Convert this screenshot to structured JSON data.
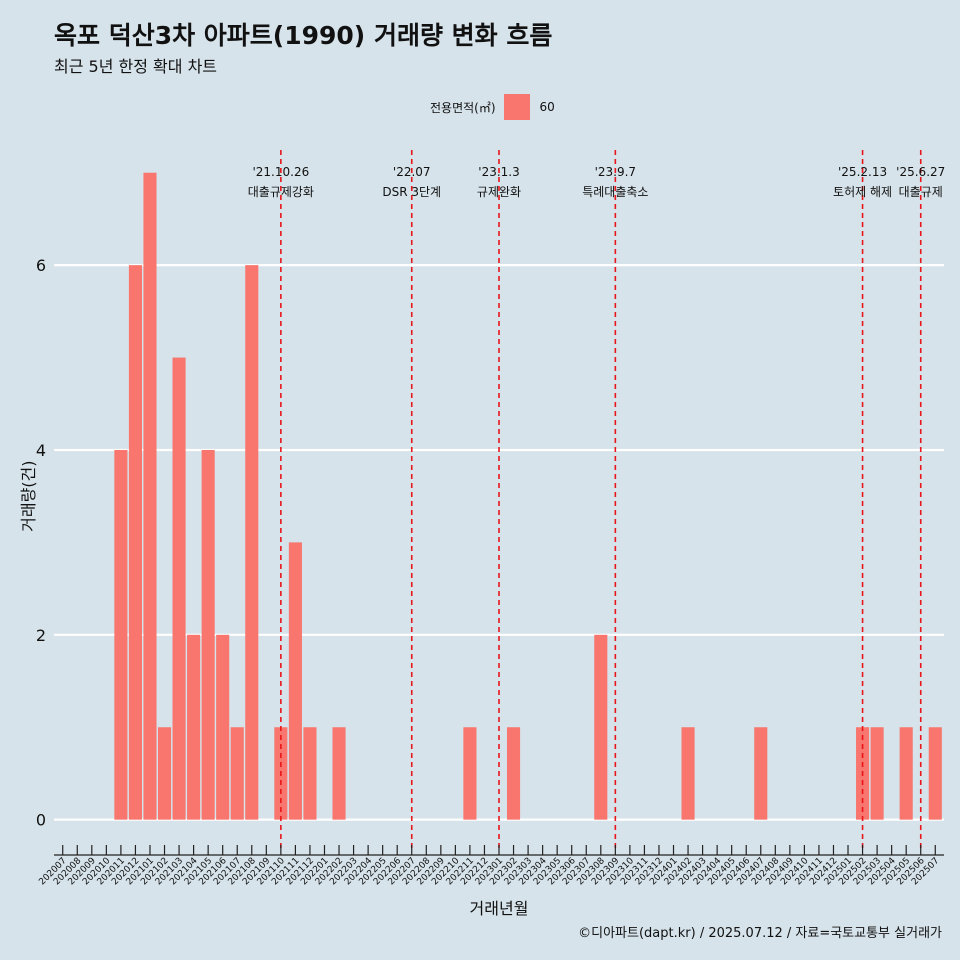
{
  "header": {
    "title": "옥포 덕산3차 아파트(1990) 거래량 변화 흐름",
    "subtitle": "최근 5년 한정 확대 차트"
  },
  "legend": {
    "title": "전용면적(㎡)",
    "label": "60",
    "color": "#f8766d"
  },
  "caption": "©디아파트(dapt.kr) / 2025.07.12 / 자료=국토교통부 실거래가",
  "colors": {
    "bar": "#f8766d",
    "event_line": "#e8161a",
    "grid": "#ffffff",
    "background": "#d6e3ea"
  },
  "chart_data": {
    "type": "bar",
    "xlabel": "거래년월",
    "ylabel": "거래량(건)",
    "ylim": [
      -0.35,
      7.3
    ],
    "yticks": [
      0,
      2,
      4,
      6
    ],
    "categories": [
      "202007",
      "202008",
      "202009",
      "202010",
      "202011",
      "202012",
      "202101",
      "202102",
      "202103",
      "202104",
      "202105",
      "202106",
      "202107",
      "202108",
      "202109",
      "202110",
      "202111",
      "202112",
      "202201",
      "202202",
      "202203",
      "202204",
      "202205",
      "202206",
      "202207",
      "202208",
      "202209",
      "202210",
      "202211",
      "202212",
      "202301",
      "202302",
      "202303",
      "202304",
      "202305",
      "202306",
      "202307",
      "202308",
      "202309",
      "202310",
      "202311",
      "202312",
      "202401",
      "202402",
      "202403",
      "202404",
      "202405",
      "202406",
      "202407",
      "202408",
      "202409",
      "202410",
      "202411",
      "202412",
      "202501",
      "202502",
      "202503",
      "202504",
      "202505",
      "202506",
      "202507"
    ],
    "series": [
      {
        "name": "60",
        "values": [
          0,
          0,
          0,
          0,
          4,
          6,
          7,
          1,
          5,
          2,
          4,
          2,
          1,
          6,
          0,
          1,
          3,
          1,
          0,
          1,
          0,
          0,
          0,
          0,
          0,
          0,
          0,
          0,
          1,
          0,
          0,
          1,
          0,
          0,
          0,
          0,
          0,
          2,
          0,
          0,
          0,
          0,
          0,
          1,
          0,
          0,
          0,
          0,
          1,
          0,
          0,
          0,
          0,
          0,
          0,
          1,
          1,
          0,
          1,
          0,
          1
        ]
      }
    ],
    "events": [
      {
        "date": "'21.10.26",
        "label": "대출규제강화",
        "at": "202110"
      },
      {
        "date": "'22.07",
        "label": "DSR 3단계",
        "at": "202207"
      },
      {
        "date": "'23.1.3",
        "label": "규제완화",
        "at": "202301"
      },
      {
        "date": "'23.9.7",
        "label": "특례대출축소",
        "at": "202309"
      },
      {
        "date": "'25.2.13",
        "label": "토허제 해제",
        "at": "202502"
      },
      {
        "date": "'25.6.27",
        "label": "대출규제",
        "at": "202506"
      }
    ]
  }
}
